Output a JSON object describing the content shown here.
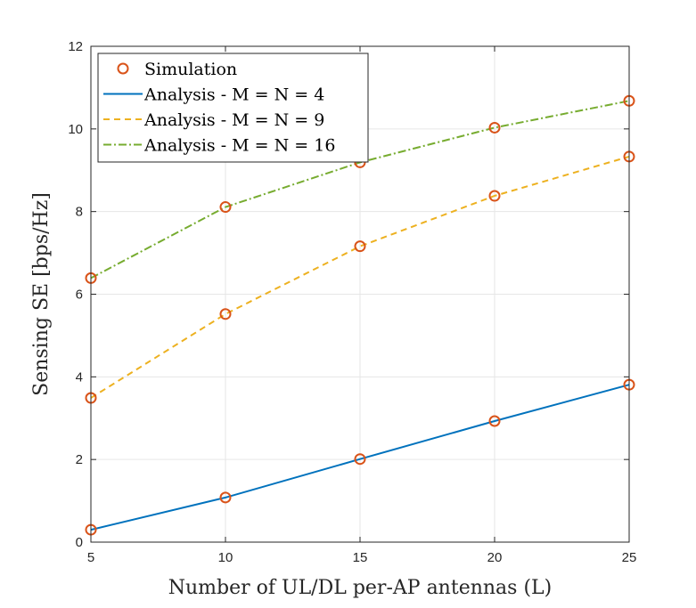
{
  "chart_data": {
    "type": "line",
    "xlabel": "Number of UL/DL per-AP antennas (L)",
    "ylabel": "Sensing SE [bps/Hz]",
    "x": [
      5,
      10,
      15,
      20,
      25
    ],
    "xlim": [
      5,
      25
    ],
    "ylim": [
      0,
      12
    ],
    "xticks": [
      "5",
      "10",
      "15",
      "20",
      "25"
    ],
    "yticks": [
      "0",
      "2",
      "4",
      "6",
      "8",
      "10",
      "12"
    ],
    "grid": true,
    "legend_position": "top-left",
    "series": [
      {
        "name": "Analysis - M = N = 4",
        "style": "solid",
        "color": "#0072BD",
        "values": [
          0.3,
          1.08,
          2.01,
          2.93,
          3.81
        ]
      },
      {
        "name": "Analysis - M = N = 9",
        "style": "dashed",
        "color": "#EDB120",
        "values": [
          3.49,
          5.52,
          7.16,
          8.38,
          9.33
        ]
      },
      {
        "name": "Analysis - M = N = 16",
        "style": "dashdot",
        "color": "#77AC30",
        "values": [
          6.39,
          8.11,
          9.19,
          10.03,
          10.68
        ]
      }
    ],
    "markers": {
      "name": "Simulation",
      "color": "#D95319",
      "shape": "circle",
      "points": [
        [
          0.3,
          1.08,
          2.01,
          2.93,
          3.81
        ],
        [
          3.49,
          5.52,
          7.16,
          8.38,
          9.33
        ],
        [
          6.39,
          8.11,
          9.19,
          10.03,
          10.68
        ]
      ]
    }
  }
}
